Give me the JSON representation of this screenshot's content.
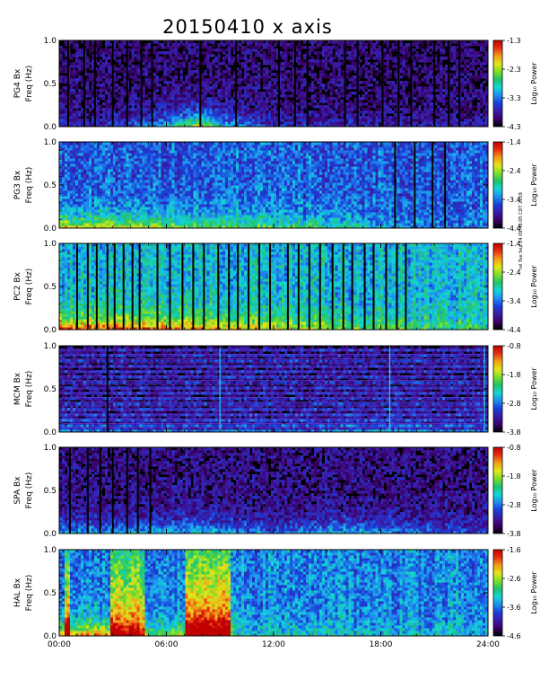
{
  "chart_data": {
    "type": "heatmap",
    "title": "20150410 x axis",
    "side_note": "rel Tue Sep 24 09:48:05 CDT 2019",
    "x_tick_labels": [
      "00:00",
      "06:00",
      "12:00",
      "18:00",
      "24:00"
    ],
    "x_range_hours": [
      0,
      24
    ],
    "colormap": [
      "#000000",
      "#3a0066",
      "#3a1ca8",
      "#1a3fd8",
      "#1f8ef0",
      "#12d6d6",
      "#22c26a",
      "#79e02a",
      "#e6e61a",
      "#f0a018",
      "#e83010",
      "#c00000"
    ],
    "panels": [
      {
        "station": "PG4",
        "ylabel1": "PG4 Bx",
        "ylabel2": "Freq (Hz)",
        "y_tick_labels": [
          "0.0",
          "0.5",
          "1.0"
        ],
        "ylim": [
          0,
          1.0
        ],
        "colorbar_label": "Log₁₀ Power",
        "colorbar_tick_labels": [
          "-1.3",
          "-2.3",
          "-3.3",
          "-4.3"
        ],
        "zlim": [
          -4.3,
          -1.3
        ],
        "base": 0.1,
        "lowfreq_boost": [
          [
            0.0,
            0.15
          ],
          [
            2.0,
            0.1
          ],
          [
            5.0,
            0.25
          ],
          [
            8.0,
            0.7
          ],
          [
            9.0,
            0.4
          ],
          [
            12.0,
            0.1
          ],
          [
            16.0,
            0.15
          ],
          [
            18.0,
            0.1
          ],
          [
            24.0,
            0.1
          ]
        ],
        "gaps": [
          0.5,
          1.4,
          2.0,
          3.0,
          3.8,
          4.6,
          5.2,
          7.9,
          9.9,
          12.3,
          13.2,
          13.9,
          16.0,
          16.7,
          18.1,
          19.0,
          19.7,
          21.0,
          21.8,
          22.4
        ],
        "harmonics": false
      },
      {
        "station": "PG3",
        "ylabel1": "PG3 Bx",
        "ylabel2": "Freq (Hz)",
        "y_tick_labels": [
          "0.0",
          "0.5",
          "1.0"
        ],
        "ylim": [
          0,
          1.0
        ],
        "colorbar_label": "Log₁₀ Power",
        "colorbar_tick_labels": [
          "-1.4",
          "-2.4",
          "-3.4",
          "-4.4"
        ],
        "zlim": [
          -4.4,
          -1.4
        ],
        "base": 0.3,
        "lowfreq_boost": [
          [
            0.0,
            0.5
          ],
          [
            4.0,
            0.45
          ],
          [
            8.0,
            0.35
          ],
          [
            12.0,
            0.3
          ],
          [
            16.0,
            0.25
          ],
          [
            18.0,
            0.1
          ],
          [
            24.0,
            0.05
          ]
        ],
        "gaps": [
          18.8,
          19.9,
          20.9,
          21.6
        ],
        "harmonics": false
      },
      {
        "station": "PC2",
        "ylabel1": "PC2 Bx",
        "ylabel2": "Freq (Hz)",
        "y_tick_labels": [
          "0.0",
          "0.5",
          "1.0"
        ],
        "ylim": [
          0,
          1.0
        ],
        "colorbar_label": "Log₁₀ Power",
        "colorbar_tick_labels": [
          "-1.4",
          "-2.4",
          "-3.4",
          "-4.4"
        ],
        "zlim": [
          -4.4,
          -1.4
        ],
        "base": 0.42,
        "lowfreq_boost": [
          [
            0.0,
            0.55
          ],
          [
            6.0,
            0.5
          ],
          [
            12.0,
            0.35
          ],
          [
            16.0,
            0.25
          ],
          [
            24.0,
            0.1
          ]
        ],
        "gaps": [
          1.0,
          1.6,
          2.1,
          2.7,
          3.1,
          3.6,
          4.1,
          4.5,
          5.5,
          6.2,
          6.9,
          7.5,
          8.1,
          8.9,
          9.5,
          10.0,
          10.6,
          11.2,
          11.8,
          12.8,
          13.4,
          14.0,
          14.6,
          15.3,
          15.9,
          16.4,
          17.1,
          17.6,
          18.3,
          18.9,
          19.4
        ],
        "harmonics": false
      },
      {
        "station": "MCM",
        "ylabel1": "MCM Bx",
        "ylabel2": "Freq (Hz)",
        "y_tick_labels": [
          "0.0",
          "0.5",
          "1.0"
        ],
        "ylim": [
          0,
          1.0
        ],
        "colorbar_label": "Log₁₀ Power",
        "colorbar_tick_labels": [
          "-0.8",
          "-1.8",
          "-2.8",
          "-3.8"
        ],
        "zlim": [
          -3.8,
          -0.8
        ],
        "base": 0.1,
        "lowfreq_boost": [
          [
            0.0,
            0.15
          ],
          [
            12.0,
            0.1
          ],
          [
            19.0,
            0.2
          ],
          [
            24.0,
            0.1
          ]
        ],
        "gaps": [
          2.7
        ],
        "harmonics": true,
        "spikes": [
          9.0,
          18.5,
          23.8
        ]
      },
      {
        "station": "SPA",
        "ylabel1": "SPA Bx",
        "ylabel2": "Freq (Hz)",
        "y_tick_labels": [
          "0.0",
          "0.5",
          "1.0"
        ],
        "ylim": [
          0,
          1.0
        ],
        "colorbar_label": "Log₁₀ Power",
        "colorbar_tick_labels": [
          "-0.8",
          "-1.8",
          "-2.8",
          "-3.8"
        ],
        "zlim": [
          -3.8,
          -0.8
        ],
        "base": 0.12,
        "lowfreq_boost": [
          [
            0.0,
            0.3
          ],
          [
            8.0,
            0.35
          ],
          [
            12.0,
            0.2
          ],
          [
            16.0,
            0.35
          ],
          [
            20.0,
            0.2
          ],
          [
            24.0,
            0.15
          ]
        ],
        "gaps": [
          0.6,
          1.6,
          2.3,
          3.0,
          3.8,
          4.4,
          5.1
        ],
        "harmonics": false
      },
      {
        "station": "HAL",
        "ylabel1": "HAL Bx",
        "ylabel2": "Freq (Hz)",
        "y_tick_labels": [
          "0.0",
          "0.5",
          "1.0"
        ],
        "ylim": [
          0,
          1.0
        ],
        "colorbar_label": "Log₁₀ Power",
        "colorbar_tick_labels": [
          "-1.6",
          "-2.6",
          "-3.6",
          "-4.6"
        ],
        "zlim": [
          -4.6,
          -1.6
        ],
        "base": 0.35,
        "lowfreq_boost": [
          [
            0.0,
            0.5
          ],
          [
            2.5,
            0.55
          ],
          [
            4.0,
            0.35
          ],
          [
            6.0,
            0.3
          ],
          [
            8.0,
            0.45
          ],
          [
            9.5,
            0.4
          ],
          [
            10.0,
            0.15
          ],
          [
            24.0,
            0.1
          ]
        ],
        "band_hot": [
          [
            0.3,
            0.6,
            0.55
          ],
          [
            2.8,
            4.8,
            0.5
          ],
          [
            7.0,
            9.6,
            0.6
          ]
        ],
        "gaps": [],
        "harmonics": false
      }
    ]
  }
}
